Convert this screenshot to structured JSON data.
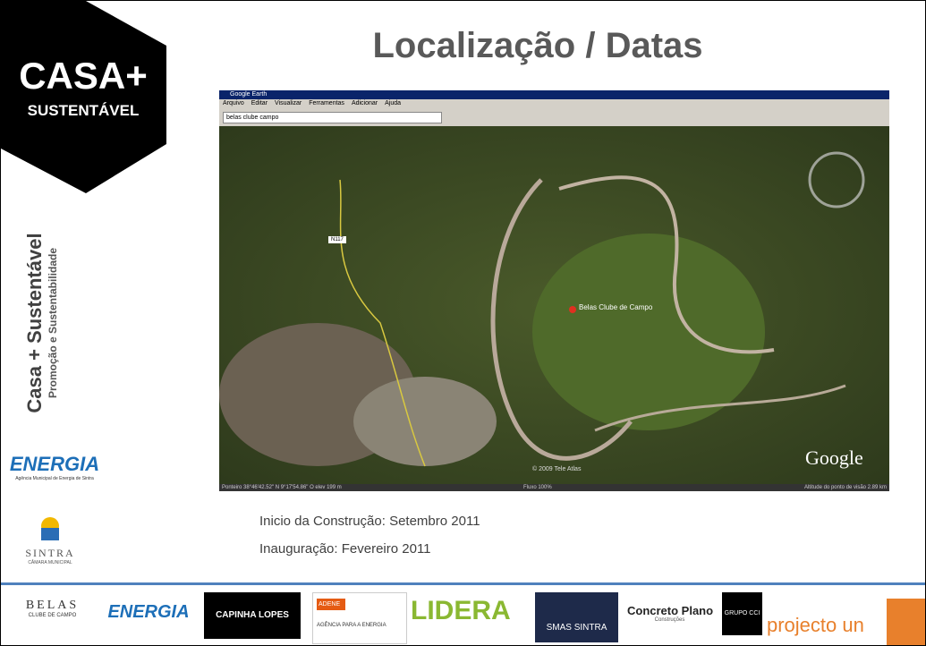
{
  "header": {
    "title": "Localização / Datas"
  },
  "sidebar": {
    "logo_main": "CASA+",
    "logo_sub": "SUSTENTÁVEL",
    "vertical_title": "Casa + Sustentável",
    "vertical_subtitle": "Promoção e Sustentabilidade",
    "energia": "ENERGIA",
    "energia_sub": "Agência Municipal de Energia de Sintra",
    "sintra": "SINTRA",
    "sintra_sub": "CÂMARA MUNICIPAL"
  },
  "screenshot": {
    "window_title": "Google Earth",
    "menu": [
      "Arquivo",
      "Editar",
      "Visualizar",
      "Ferramentas",
      "Adicionar",
      "Ajuda"
    ],
    "search": "belas clube campo",
    "place_label": "Belas Clube de Campo",
    "road_label": "N117",
    "brand": "Google",
    "copyright": "© 2009 Tele Atlas",
    "status_left": "Ponteiro 38°46'42.52\" N  9°17'54.86\" O  elev 199 m",
    "status_mid": "Fluxo 100%",
    "status_right": "Altitude do ponto de visão 2.89 km"
  },
  "info": [
    "Inicio da Construção: Setembro 2011",
    "Inauguração: Fevereiro 2011"
  ],
  "footer": {
    "logos": [
      {
        "text": "BELAS",
        "sub": "CLUBE DE CAMPO"
      },
      {
        "text": "ENERGIA"
      },
      {
        "text": "CAPINHA LOPES"
      },
      {
        "text": "ADENE",
        "sub": "AGÊNCIA PARA A ENERGIA"
      },
      {
        "text": "LIDERA"
      },
      {
        "text": "SMAS SINTRA"
      },
      {
        "text": "Concreto Plano",
        "sub": "Construções"
      },
      {
        "text": "GRUPO CCI"
      },
      {
        "text": "projecto un"
      }
    ]
  }
}
